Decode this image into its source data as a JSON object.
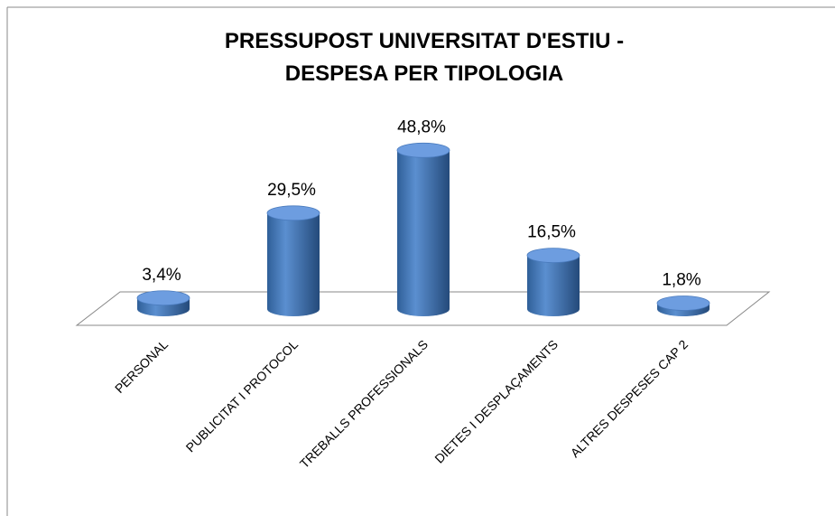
{
  "chart_data": {
    "type": "bar3d",
    "title": "PRESSUPOST UNIVERSITAT D'ESTIU - DESPESA PER TIPOLOGIA",
    "categories": [
      "PERSONAL",
      "PUBLICITAT I PROTOCOL",
      "TREBALLS PROFESSIONALS",
      "DIETES I DESPLAÇAMENTS",
      "ALTRES DESPESES CAP 2"
    ],
    "values": [
      3.4,
      29.5,
      48.8,
      16.5,
      1.8
    ],
    "value_labels": [
      "3,4%",
      "29,5%",
      "48,8%",
      "16,5%",
      "1,8%"
    ],
    "color": "#4f81bd"
  }
}
